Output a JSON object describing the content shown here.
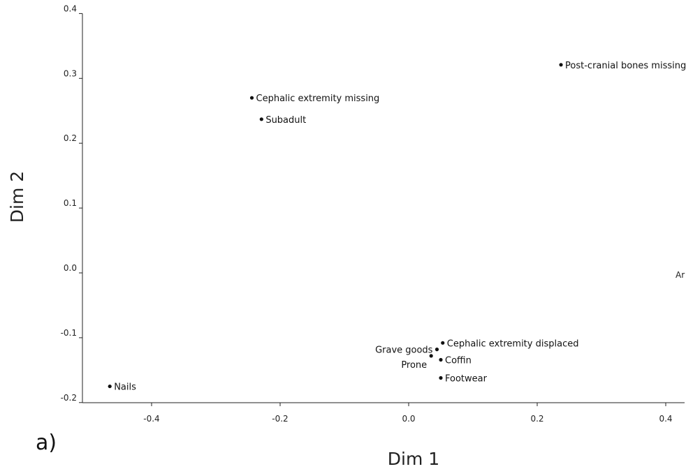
{
  "panel_label": "a)",
  "chart_data": {
    "type": "scatter",
    "xlabel": "Dim 1",
    "ylabel": "Dim 2",
    "xlim": [
      -0.5,
      0.43
    ],
    "ylim": [
      -0.2,
      0.4
    ],
    "x_ticks": [
      "-0.4",
      "-0.2",
      "0.0",
      "0.2",
      "0.4"
    ],
    "y_ticks": [
      "0.4",
      "0.3",
      "0.2",
      "0.1",
      "0.0",
      "-0.1",
      "-0.2"
    ],
    "grid": false,
    "points": [
      {
        "label": "Post-cranial bones missing",
        "x": 0.237,
        "y": 0.321
      },
      {
        "label": "Cephalic extremity missing",
        "x": -0.244,
        "y": 0.27
      },
      {
        "label": "Subadult",
        "x": -0.229,
        "y": 0.237
      },
      {
        "label": "Cephalic extremity displaced",
        "x": 0.053,
        "y": -0.108
      },
      {
        "label": "Grave goods",
        "x": 0.044,
        "y": -0.118
      },
      {
        "label": "Prone",
        "x": 0.035,
        "y": -0.128
      },
      {
        "label": "Coffin",
        "x": 0.05,
        "y": -0.134
      },
      {
        "label": "Footwear",
        "x": 0.05,
        "y": -0.162
      },
      {
        "label": "Nails",
        "x": -0.465,
        "y": -0.175
      }
    ],
    "annotations": [
      "Ar"
    ]
  }
}
